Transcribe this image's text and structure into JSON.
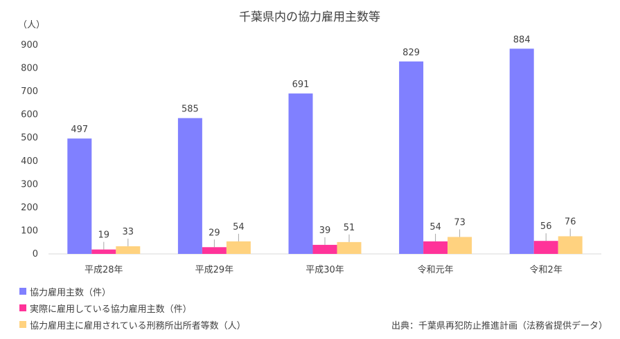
{
  "chart_data": {
    "type": "bar",
    "title": "千葉県内の協力雇用主数等",
    "unit_label": "（人）",
    "categories": [
      "平成28年",
      "平成29年",
      "平成30年",
      "令和元年",
      "令和2年"
    ],
    "ylim": [
      0,
      900
    ],
    "yticks": [
      0,
      100,
      200,
      300,
      400,
      500,
      600,
      700,
      800,
      900
    ],
    "grid": false,
    "legend_position": "bottom-left",
    "series": [
      {
        "name": "協力雇用主数（件）",
        "color": "#8080ff",
        "values": [
          497,
          585,
          691,
          829,
          884
        ]
      },
      {
        "name": "実際に雇用している協力雇用主数（件）",
        "color": "#ff3399",
        "values": [
          19,
          29,
          39,
          54,
          56
        ]
      },
      {
        "name": "協力雇用主に雇用されている刑務所出所者等数（人）",
        "color": "#ffd27f",
        "values": [
          33,
          54,
          51,
          73,
          76
        ]
      }
    ]
  },
  "source": "出典：千葉県再犯防止推進計画（法務省提供データ）"
}
